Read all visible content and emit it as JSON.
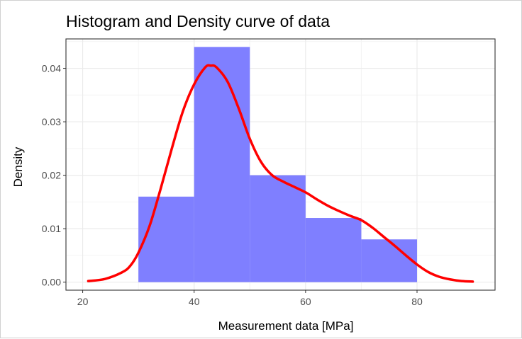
{
  "chart_data": {
    "type": "histogram",
    "title": "Histogram and Density curve of data",
    "xlabel": "Measurement data [MPa]",
    "ylabel": "Density",
    "xlim": [
      17,
      94
    ],
    "ylim": [
      -0.0015,
      0.0455
    ],
    "x_ticks": [
      20,
      40,
      60,
      80
    ],
    "y_ticks": [
      0.0,
      0.01,
      0.02,
      0.03,
      0.04
    ],
    "x_tick_labels": [
      "20",
      "40",
      "60",
      "80"
    ],
    "y_tick_labels": [
      "0.00",
      "0.01",
      "0.02",
      "0.03",
      "0.04"
    ],
    "grid": true,
    "bins": [
      {
        "x0": 30,
        "x1": 40,
        "density": 0.016
      },
      {
        "x0": 40,
        "x1": 50,
        "density": 0.044
      },
      {
        "x0": 50,
        "x1": 60,
        "density": 0.02
      },
      {
        "x0": 60,
        "x1": 70,
        "density": 0.012
      },
      {
        "x0": 70,
        "x1": 80,
        "density": 0.008
      }
    ],
    "density_curve": {
      "x": [
        21,
        24,
        27,
        28.5,
        30,
        32,
        34,
        36,
        38,
        40,
        42,
        43,
        44,
        46,
        48,
        50,
        52,
        54,
        56,
        58,
        60,
        62,
        64,
        66,
        68,
        70,
        72,
        74,
        76,
        78,
        80,
        82,
        84,
        86,
        88,
        90
      ],
      "y": [
        0.0002,
        0.0006,
        0.0018,
        0.003,
        0.0055,
        0.0105,
        0.0175,
        0.025,
        0.032,
        0.037,
        0.0402,
        0.0405,
        0.0402,
        0.0375,
        0.0325,
        0.0268,
        0.0225,
        0.02,
        0.0188,
        0.0178,
        0.0168,
        0.0155,
        0.0143,
        0.0133,
        0.0124,
        0.0116,
        0.0102,
        0.0085,
        0.0068,
        0.005,
        0.0033,
        0.0019,
        0.001,
        0.0005,
        0.0002,
        0.0001
      ]
    },
    "colors": {
      "bars": "#7f7fff",
      "curve": "#ff0000",
      "grid_major": "#ebebeb",
      "grid_minor": "#f4f4f4",
      "panel_border": "#333333",
      "axis_text": "#4d4d4d"
    }
  }
}
